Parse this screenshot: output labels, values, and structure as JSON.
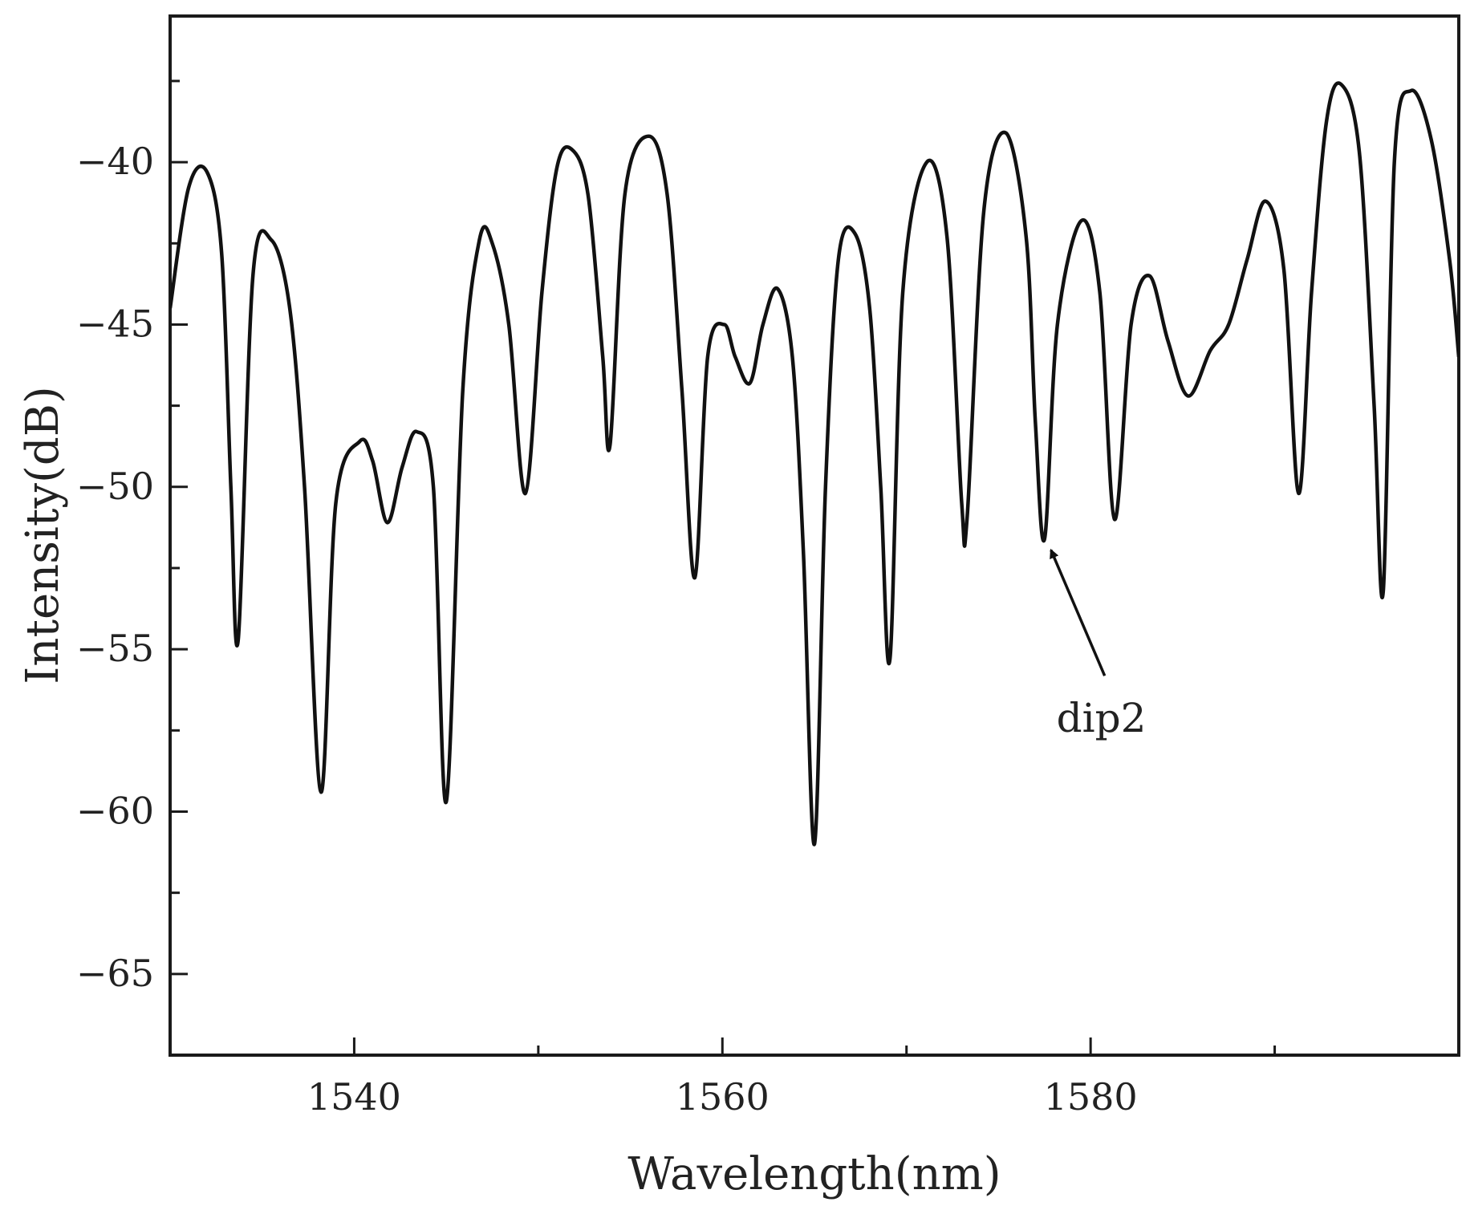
{
  "chart_data": {
    "type": "line",
    "title": "",
    "xlabel": "Wavelength(nm)",
    "ylabel": "Intensity(dB)",
    "xlim": [
      1530,
      1600
    ],
    "ylim": [
      -67.5,
      -35.5
    ],
    "x_ticks": [
      1540,
      1560,
      1580
    ],
    "y_ticks": [
      -40,
      -45,
      -50,
      -55,
      -60,
      -65
    ],
    "x_tick_labels": [
      "1540",
      "1560",
      "1580"
    ],
    "y_tick_labels": [
      "−40",
      "−45",
      "−50",
      "−55",
      "−60",
      "−65"
    ],
    "grid": false,
    "legend": false,
    "line_color": "#111111",
    "series": [
      {
        "x": [
          1530.0,
          1531.0,
          1532.0,
          1532.8,
          1533.3,
          1533.7,
          1534.5,
          1535.5,
          1536.5,
          1537.3,
          1538.2,
          1539.0,
          1540.3,
          1541.0,
          1541.8,
          1542.6,
          1543.4,
          1544.3,
          1545.0,
          1545.9,
          1546.8,
          1547.5,
          1548.4,
          1549.3,
          1550.2,
          1551.0,
          1551.8,
          1552.7,
          1553.5,
          1553.9,
          1554.7,
          1556.0,
          1557.0,
          1557.8,
          1558.5,
          1559.2,
          1560.1,
          1560.7,
          1561.5,
          1562.2,
          1563.0,
          1563.8,
          1564.4,
          1565.0,
          1565.6,
          1566.3,
          1567.2,
          1568.0,
          1568.6,
          1569.1,
          1569.8,
          1571.1,
          1572.2,
          1573.0,
          1573.3,
          1574.2,
          1575.4,
          1576.5,
          1577.0,
          1577.5,
          1578.2,
          1579.5,
          1580.5,
          1581.3,
          1582.2,
          1583.2,
          1584.2,
          1585.3,
          1586.5,
          1587.5,
          1588.5,
          1589.5,
          1590.5,
          1591.3,
          1592.0,
          1592.8,
          1593.6,
          1594.6,
          1595.4,
          1595.9,
          1596.5,
          1597.4,
          1598.5,
          1599.5,
          1600.0
        ],
        "y": [
          -44.5,
          -40.8,
          -40.3,
          -42.8,
          -50.0,
          -54.7,
          -43.5,
          -42.4,
          -44.5,
          -50.0,
          -59.4,
          -50.5,
          -48.6,
          -49.2,
          -51.1,
          -49.4,
          -48.3,
          -50.0,
          -59.7,
          -47.0,
          -42.4,
          -42.5,
          -45.0,
          -50.2,
          -44.0,
          -40.2,
          -39.6,
          -41.0,
          -46.0,
          -48.7,
          -41.0,
          -39.2,
          -41.0,
          -47.0,
          -52.8,
          -46.0,
          -45.0,
          -46.0,
          -46.8,
          -45.0,
          -43.9,
          -46.0,
          -52.0,
          -61.0,
          -50.0,
          -43.0,
          -42.2,
          -44.5,
          -50.0,
          -55.3,
          -44.0,
          -40.0,
          -42.3,
          -50.5,
          -50.9,
          -41.5,
          -39.1,
          -42.3,
          -48.0,
          -51.6,
          -45.0,
          -41.8,
          -44.0,
          -51.0,
          -45.0,
          -43.5,
          -45.5,
          -47.2,
          -45.8,
          -45.0,
          -43.0,
          -41.2,
          -43.3,
          -50.2,
          -44.0,
          -38.8,
          -37.6,
          -39.7,
          -47.5,
          -53.2,
          -40.0,
          -37.8,
          -39.3,
          -43.0,
          -46.0
        ]
      }
    ],
    "annotations": [
      {
        "text": "dip2",
        "arrow_to": [
          1577.5,
          -51.6
        ],
        "text_at": [
          1581.2,
          -57.3
        ]
      }
    ]
  }
}
